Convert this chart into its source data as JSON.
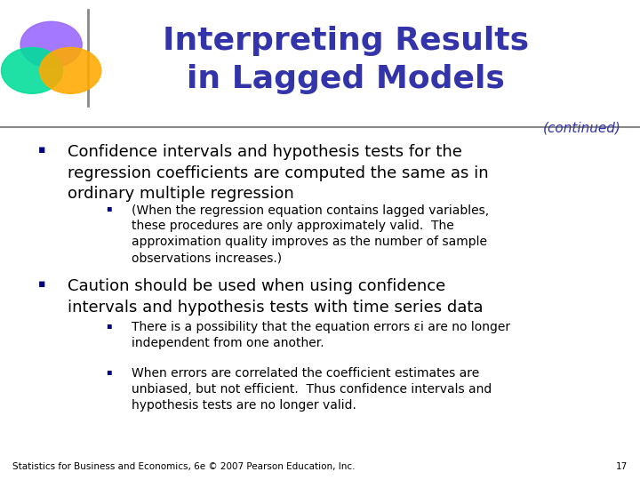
{
  "title_line1": "Interpreting Results",
  "title_line2": "in Lagged Models",
  "continued": "(continued)",
  "title_color": "#3333aa",
  "bg_color": "#ffffff",
  "footer": "Statistics for Business and Economics, 6e © 2007 Pearson Education, Inc.",
  "page_num": "17",
  "bullet1": "Confidence intervals and hypothesis tests for the\nregression coefficients are computed the same as in\nordinary multiple regression",
  "sub_bullet1": "(When the regression equation contains lagged variables,\nthese procedures are only approximately valid.  The\napproximation quality improves as the number of sample\nobservations increases.)",
  "bullet2": "Caution should be used when using confidence\nintervals and hypothesis tests with time series data",
  "sub_bullet2a": "There is a possibility that the equation errors εi are no longer\nindependent from one another.",
  "sub_bullet2b": "When errors are correlated the coefficient estimates are\nunbiased, but not efficient.  Thus confidence intervals and\nhypothesis tests are no longer valid.",
  "bullet_color": "#000080",
  "text_color": "#000000",
  "line_color": "#888888",
  "circle_purple": "#9966ff",
  "circle_green": "#00dd99",
  "circle_orange": "#ffaa00"
}
